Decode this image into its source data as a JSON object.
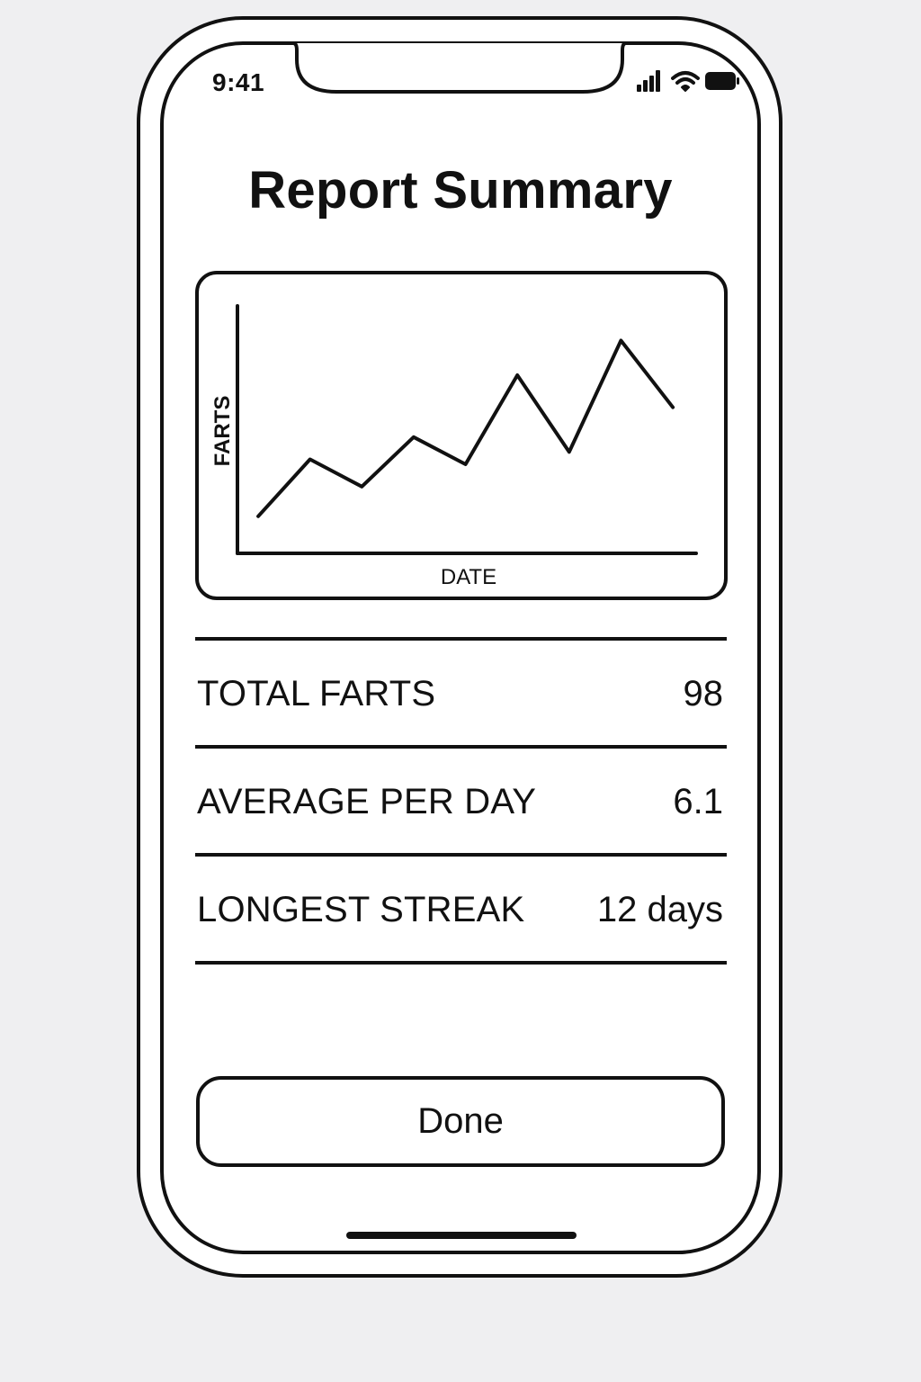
{
  "status_bar": {
    "time": "9:41",
    "icons": [
      "cellular-signal-icon",
      "wifi-icon",
      "battery-icon"
    ]
  },
  "header": {
    "title": "Report Summary"
  },
  "chart_data": {
    "type": "line",
    "title": "",
    "xlabel": "DATE",
    "ylabel": "FARTS",
    "x": [
      1,
      2,
      3,
      4,
      5,
      6,
      7,
      8,
      9
    ],
    "series": [
      {
        "values": [
          1.5,
          3.8,
          2.7,
          4.7,
          3.6,
          7.2,
          4.1,
          8.6,
          5.9
        ]
      }
    ],
    "xlim": [
      0.6,
      9.45
    ],
    "ylim": [
      0,
      10
    ],
    "grid": false,
    "legend": "none"
  },
  "stats": [
    {
      "label": "TOTAL FARTS",
      "value": "98"
    },
    {
      "label": "AVERAGE PER DAY",
      "value": "6.1"
    },
    {
      "label": "LONGEST STREAK",
      "value": "12 days"
    }
  ],
  "actions": {
    "done_label": "Done"
  }
}
